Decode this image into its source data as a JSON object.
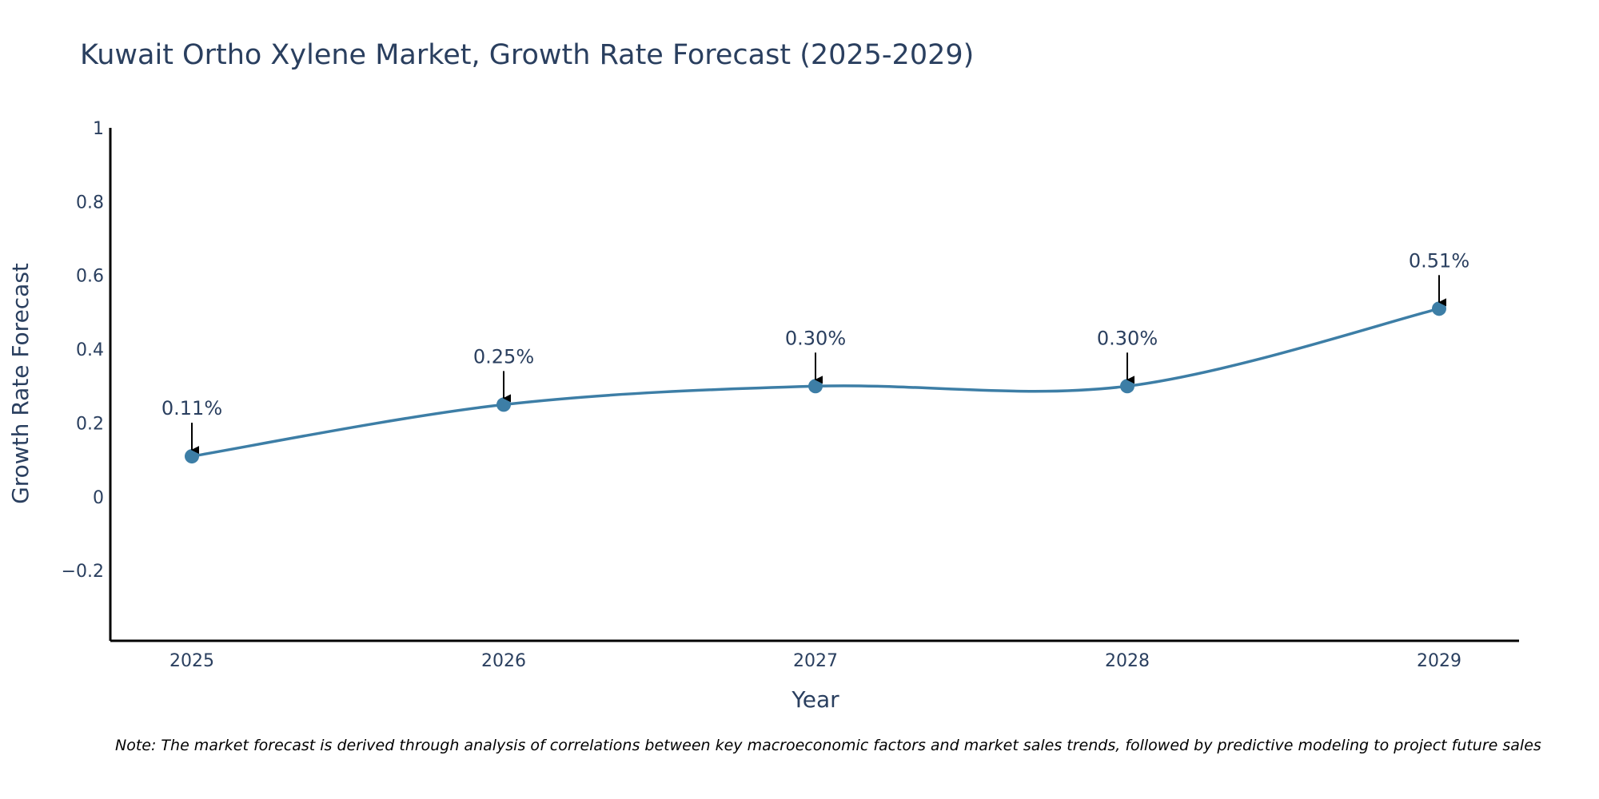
{
  "chart_data": {
    "type": "line",
    "title": "Kuwait Ortho Xylene Market, Growth Rate Forecast (2025-2029)",
    "xlabel": "Year",
    "ylabel": "Growth Rate Forecast",
    "categories": [
      "2025",
      "2026",
      "2027",
      "2028",
      "2029"
    ],
    "series": [
      {
        "name": "Growth Rate Forecast",
        "values": [
          0.11,
          0.25,
          0.3,
          0.3,
          0.51
        ],
        "labels": [
          "0.11%",
          "0.25%",
          "0.30%",
          "0.30%",
          "0.51%"
        ]
      }
    ],
    "ylim": [
      -0.39,
      1.0
    ],
    "yticks": [
      -0.2,
      0,
      0.2,
      0.4,
      0.6,
      0.8,
      1
    ],
    "ytick_labels": [
      "−0.2",
      "0",
      "0.2",
      "0.4",
      "0.6",
      "0.8",
      "1"
    ],
    "grid": false,
    "colors": {
      "line": "#3d7ea6",
      "marker": "#3d7ea6",
      "axis": "#000000",
      "arrow": "#000000",
      "text": "#2a3f5f"
    }
  },
  "note": "Note: The market forecast is derived through analysis of correlations between key macroeconomic factors and market sales trends, followed by predictive modeling to project future sales"
}
